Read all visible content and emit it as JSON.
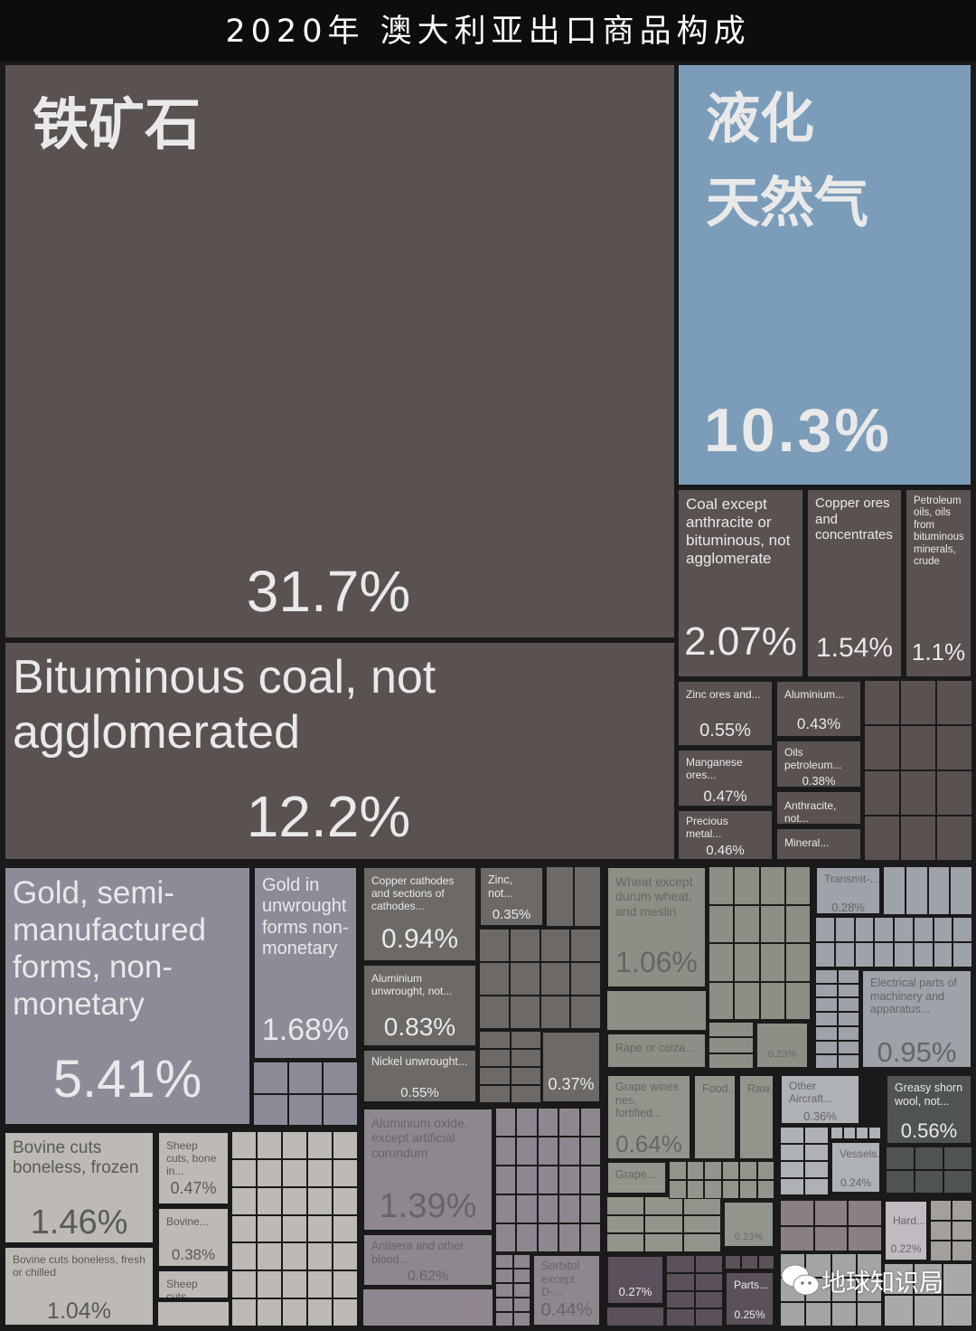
{
  "title": "2020年 澳大利亚出口商品构成",
  "watermark": "地球知识局",
  "chart_data": {
    "type": "treemap",
    "title": "2020年 澳大利亚出口商品构成",
    "unit": "%",
    "tiles": [
      {
        "label": "铁矿石",
        "value": "31.7%",
        "color": "#595250"
      },
      {
        "label": "Bituminous coal, not agglomerated",
        "value": "12.2%",
        "color": "#595250"
      },
      {
        "label": "液化\n天然气",
        "value": "10.3%",
        "color": "#7b9db9"
      },
      {
        "label": "Coal except anthracite or bituminous, not agglomerate",
        "value": "2.07%",
        "color": "#595250"
      },
      {
        "label": "Copper ores and concentrates",
        "value": "1.54%",
        "color": "#595250"
      },
      {
        "label": "Petroleum oils, oils from bituminous minerals, crude",
        "value": "1.1%",
        "color": "#595250"
      },
      {
        "label": "Zinc ores and...",
        "value": "0.55%",
        "color": "#595250"
      },
      {
        "label": "Manganese ores...",
        "value": "0.47%",
        "color": "#595250"
      },
      {
        "label": "Precious metal...",
        "value": "0.46%",
        "color": "#595250"
      },
      {
        "label": "Aluminium...",
        "value": "0.43%",
        "color": "#595250"
      },
      {
        "label": "Oils petroleum...",
        "value": "0.38%",
        "color": "#595250"
      },
      {
        "label": "Anthracite, not...",
        "value": "",
        "color": "#595250"
      },
      {
        "label": "Mineral...",
        "value": "",
        "color": "#595250"
      },
      {
        "label": "Gold, semi-manufactured forms, non-monetary",
        "value": "5.41%",
        "color": "#8f8a97"
      },
      {
        "label": "Gold in unwrought forms non-monetary",
        "value": "1.68%",
        "color": "#8f8a97"
      },
      {
        "label": "Copper cathodes and sections of cathodes...",
        "value": "0.94%",
        "color": "#6c6966"
      },
      {
        "label": "Aluminium unwrought, not...",
        "value": "0.83%",
        "color": "#6c6966"
      },
      {
        "label": "Nickel unwrought...",
        "value": "0.55%",
        "color": "#6c6966"
      },
      {
        "label": "Zinc, not...",
        "value": "0.35%",
        "color": "#6c6966"
      },
      {
        "label": "",
        "value": "0.37%",
        "color": "#6c6966"
      },
      {
        "label": "Wheat except durum wheat, and meslin",
        "value": "1.06%",
        "color": "#8f8e86"
      },
      {
        "label": "Rape or colza...",
        "value": "",
        "color": "#8f8e86"
      },
      {
        "label": "",
        "value": "0.23%",
        "color": "#8f8e86"
      },
      {
        "label": "Transmit-...",
        "value": "0.28%",
        "color": "#9ea2a9"
      },
      {
        "label": "Electrical parts of machinery and apparatus...",
        "value": "0.95%",
        "color": "#9ea2a9"
      },
      {
        "label": "Aluminium oxide, except artificial corundum",
        "value": "1.39%",
        "color": "#8f878f"
      },
      {
        "label": "Antisera and other blood...",
        "value": "0.62%",
        "color": "#8f878f"
      },
      {
        "label": "Sorbitol except D-...",
        "value": "0.44%",
        "color": "#8f878f"
      },
      {
        "label": "Bovine cuts boneless, frozen",
        "value": "1.46%",
        "color": "#bdb9b5"
      },
      {
        "label": "Bovine cuts boneless, fresh or chilled",
        "value": "1.04%",
        "color": "#bdb9b5"
      },
      {
        "label": "Sheep cuts, bone in...",
        "value": "0.47%",
        "color": "#bdb9b5"
      },
      {
        "label": "Bovine...",
        "value": "0.38%",
        "color": "#bdb9b5"
      },
      {
        "label": "Sheep cuts...",
        "value": "",
        "color": "#bdb9b5"
      },
      {
        "label": "Grape wines nes, fortified...",
        "value": "0.64%",
        "color": "#92958c"
      },
      {
        "label": "Food...",
        "value": "",
        "color": "#92958c"
      },
      {
        "label": "Raw...",
        "value": "",
        "color": "#92958c"
      },
      {
        "label": "Grape...",
        "value": "",
        "color": "#92958c"
      },
      {
        "label": "",
        "value": "0.23%",
        "color": "#92958c"
      },
      {
        "label": "",
        "value": "0.27%",
        "color": "#5b515a"
      },
      {
        "label": "Parts...",
        "value": "0.25%",
        "color": "#5b515a"
      },
      {
        "label": "Other Aircraft...",
        "value": "0.36%",
        "color": "#aeb1b5"
      },
      {
        "label": "Vessels...",
        "value": "0.24%",
        "color": "#aeb1b5"
      },
      {
        "label": "Greasy shorn wool, not...",
        "value": "0.56%",
        "color": "#4f5450"
      },
      {
        "label": "Hard...",
        "value": "0.22%",
        "color": "#c1bbc1"
      }
    ]
  }
}
